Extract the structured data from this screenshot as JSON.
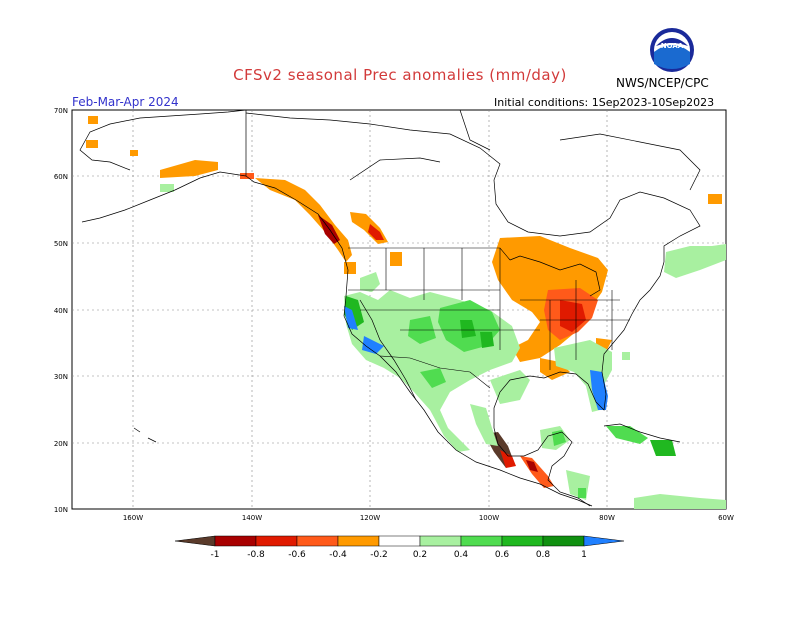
{
  "header": {
    "title": "CFSv2 seasonal Prec anomalies (mm/day)",
    "agency": "NWS/NCEP/CPC",
    "period": "Feb-Mar-Apr 2024",
    "initial_conditions": "Initial conditions: 1Sep2023-10Sep2023",
    "logo_text": "NOAA"
  },
  "axes": {
    "lat_labels": [
      "70N",
      "60N",
      "50N",
      "40N",
      "30N",
      "20N",
      "10N"
    ],
    "lon_labels": [
      "160W",
      "140W",
      "120W",
      "100W",
      "80W",
      "60W"
    ]
  },
  "colorbar": {
    "labels": [
      "-1",
      "-0.8",
      "-0.6",
      "-0.4",
      "-0.2",
      "0.2",
      "0.4",
      "0.6",
      "0.8",
      "1"
    ],
    "colors": [
      "#5a3a2a",
      "#a80000",
      "#e01a00",
      "#ff5a1a",
      "#ff9a00",
      "#ffffff",
      "#a8f0a0",
      "#50dc50",
      "#20b820",
      "#109010",
      "#2080ff"
    ]
  },
  "colors": {
    "title": "#d23a3a",
    "period": "#3333cc"
  }
}
